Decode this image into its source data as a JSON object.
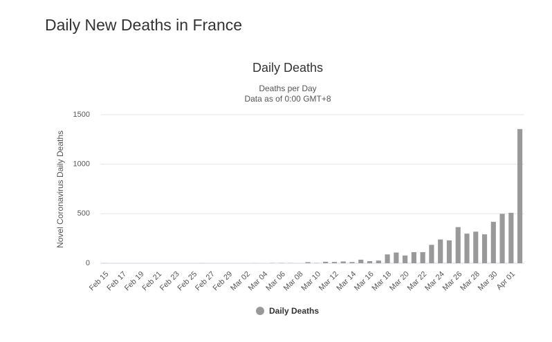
{
  "page_title": "Daily New Deaths in France",
  "chart_data": {
    "type": "bar",
    "title": "Daily Deaths",
    "subtitle": [
      "Deaths per Day",
      "Data as of 0:00 GMT+8"
    ],
    "y_label": "Novel Coronavirus Daily Deaths",
    "categories": [
      "Feb 15",
      null,
      "Feb 17",
      null,
      "Feb 19",
      null,
      "Feb 21",
      null,
      "Feb 23",
      null,
      "Feb 25",
      null,
      "Feb 27",
      null,
      "Feb 29",
      null,
      "Mar 02",
      null,
      "Mar 04",
      null,
      "Mar 06",
      null,
      "Mar 08",
      null,
      "Mar 10",
      null,
      "Mar 12",
      null,
      "Mar 14",
      null,
      "Mar 16",
      null,
      "Mar 18",
      null,
      "Mar 20",
      null,
      "Mar 22",
      null,
      "Mar 24",
      null,
      "Mar 26",
      null,
      "Mar 28",
      null,
      "Mar 30",
      null,
      "Apr 01",
      null
    ],
    "series": [
      {
        "name": "Daily Deaths",
        "color": "#999999",
        "values": [
          1,
          0,
          0,
          0,
          0,
          0,
          0,
          0,
          0,
          0,
          0,
          1,
          0,
          0,
          0,
          0,
          0,
          1,
          0,
          2,
          3,
          2,
          0,
          11,
          3,
          15,
          13,
          18,
          12,
          36,
          21,
          27,
          89,
          108,
          78,
          112,
          112,
          186,
          240,
          231,
          365,
          299,
          319,
          292,
          418,
          499,
          509,
          1355
        ]
      }
    ],
    "ylim": [
      0,
      1500
    ],
    "yticks": [
      0,
      500,
      1000,
      1500
    ],
    "grid": true,
    "legend": "bottom"
  }
}
